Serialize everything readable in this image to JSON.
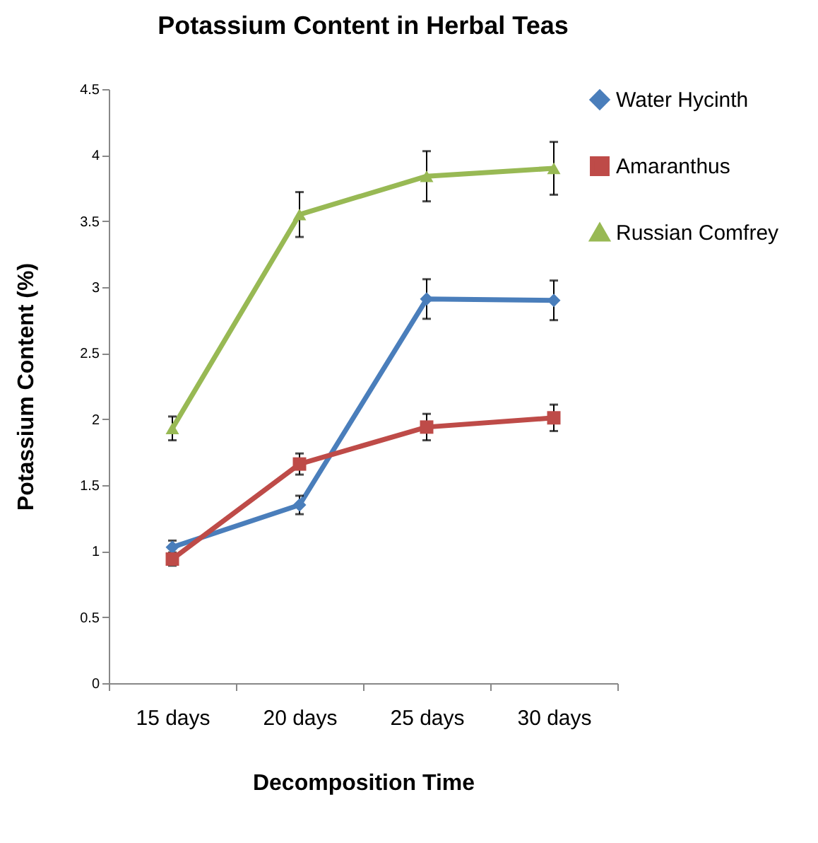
{
  "chart_data": {
    "type": "line",
    "title": "Potassium Content in Herbal Teas",
    "xlabel": "Decomposition Time",
    "ylabel": "Potassium Content (%)",
    "categories": [
      "15 days",
      "20 days",
      "25 days",
      "30 days"
    ],
    "series": [
      {
        "name": "Water Hycinth",
        "color": "#4a7ebb",
        "marker": "diamond",
        "values": [
          1.03,
          1.35,
          2.91,
          2.9
        ],
        "errors": [
          0.05,
          0.07,
          0.15,
          0.15
        ]
      },
      {
        "name": "Amaranthus",
        "color": "#be4b48",
        "marker": "square",
        "values": [
          0.94,
          1.66,
          1.94,
          2.01
        ],
        "errors": [
          0.05,
          0.08,
          0.1,
          0.1
        ]
      },
      {
        "name": "Russian Comfrey",
        "color": "#98b954",
        "marker": "triangle",
        "values": [
          1.93,
          3.55,
          3.84,
          3.9
        ],
        "errors": [
          0.09,
          0.17,
          0.19,
          0.2
        ]
      }
    ],
    "ylim": [
      0,
      4.5
    ],
    "yticks": [
      0,
      0.5,
      1,
      1.5,
      2,
      2.5,
      3,
      3.5,
      4,
      4.5
    ],
    "grid": false,
    "legend": "right",
    "line_style": "solid"
  }
}
